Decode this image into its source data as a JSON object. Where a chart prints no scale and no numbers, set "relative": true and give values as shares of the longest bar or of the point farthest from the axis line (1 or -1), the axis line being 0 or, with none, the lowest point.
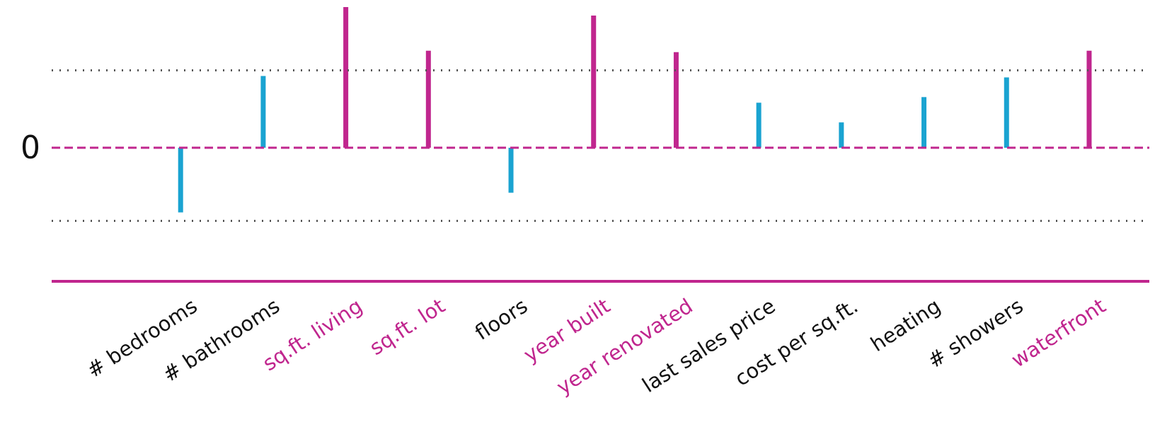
{
  "chart_data": {
    "type": "bar",
    "relative": true,
    "categories": [
      "# bedrooms",
      "# bathrooms",
      "sq.ft. living",
      "sq.ft. lot",
      "floors",
      "year built",
      "year renovated",
      "last sales price",
      "cost per sq.ft.",
      "heating",
      "# showers",
      "waterfront"
    ],
    "values": [
      -0.46,
      0.51,
      1,
      0.69,
      -0.32,
      0.94,
      0.68,
      0.32,
      0.18,
      0.36,
      0.5,
      0.69
    ],
    "colors": [
      "#1aa3d1",
      "#1aa3d1",
      "#c0268e",
      "#c0268e",
      "#1aa3d1",
      "#c0268e",
      "#c0268e",
      "#1aa3d1",
      "#1aa3d1",
      "#1aa3d1",
      "#1aa3d1",
      "#c0268e"
    ],
    "ref_lines": [
      {
        "axis": "y",
        "value": 0,
        "label": "0",
        "color": "#c0268e",
        "line_style": "dashed"
      },
      {
        "axis": "y",
        "value": 0.55,
        "label": null,
        "color": "#555555",
        "line_style": "dotted"
      },
      {
        "axis": "y",
        "value": -0.52,
        "label": null,
        "color": "#555555",
        "line_style": "dotted"
      }
    ]
  }
}
